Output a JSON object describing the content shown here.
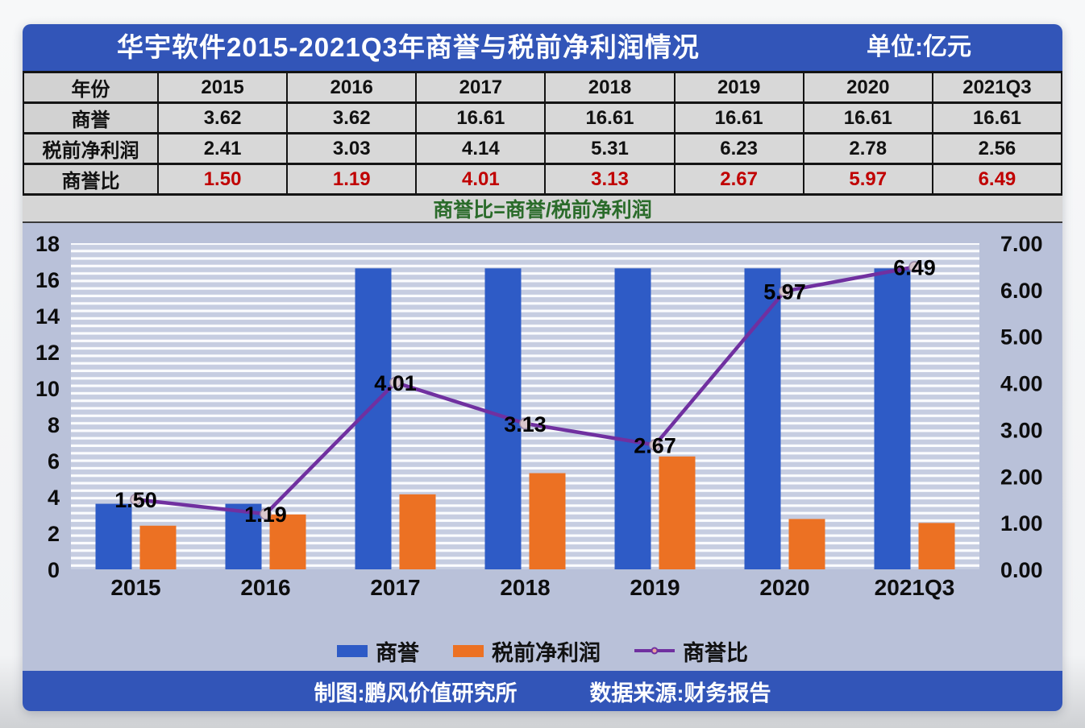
{
  "title_bar": {
    "title": "华宇软件2015-2021Q3年商誉与税前净利润情况",
    "unit": "单位:亿元"
  },
  "table": {
    "header": [
      "年份",
      "2015",
      "2016",
      "2017",
      "2018",
      "2019",
      "2020",
      "2021Q3"
    ],
    "rows": [
      {
        "label": "商誉",
        "values": [
          "3.62",
          "3.62",
          "16.61",
          "16.61",
          "16.61",
          "16.61",
          "16.61"
        ]
      },
      {
        "label": "税前净利润",
        "values": [
          "2.41",
          "3.03",
          "4.14",
          "5.31",
          "6.23",
          "2.78",
          "2.56"
        ]
      },
      {
        "label": "商誉比",
        "values": [
          "1.50",
          "1.19",
          "4.01",
          "3.13",
          "2.67",
          "5.97",
          "6.49"
        ]
      }
    ],
    "formula": "商誉比=商誉/税前净利润"
  },
  "chart_data": {
    "type": "combo",
    "categories": [
      "2015",
      "2016",
      "2017",
      "2018",
      "2019",
      "2020",
      "2021Q3"
    ],
    "series": [
      {
        "name": "商誉",
        "type": "bar",
        "axis": "left",
        "color": "#2e5bc6",
        "values": [
          3.62,
          3.62,
          16.61,
          16.61,
          16.61,
          16.61,
          16.61
        ]
      },
      {
        "name": "税前净利润",
        "type": "bar",
        "axis": "left",
        "color": "#ec7123",
        "values": [
          2.41,
          3.03,
          4.14,
          5.31,
          6.23,
          2.78,
          2.56
        ]
      },
      {
        "name": "商誉比",
        "type": "line",
        "axis": "right",
        "color": "#7030a0",
        "values": [
          1.5,
          1.19,
          4.01,
          3.13,
          2.67,
          5.97,
          6.49
        ],
        "labels": [
          "1.50",
          "1.19",
          "4.01",
          "3.13",
          "2.67",
          "5.97",
          "6.49"
        ]
      }
    ],
    "left_axis": {
      "min": 0,
      "max": 18,
      "step": 2,
      "ticks": [
        "0",
        "2",
        "4",
        "6",
        "8",
        "10",
        "12",
        "14",
        "16",
        "18"
      ]
    },
    "right_axis": {
      "min": 0,
      "max": 7,
      "step": 1,
      "ticks": [
        "0.00",
        "1.00",
        "2.00",
        "3.00",
        "4.00",
        "5.00",
        "6.00",
        "7.00"
      ]
    },
    "legend": [
      {
        "label": "商誉",
        "type": "bar",
        "color": "#2e5bc6"
      },
      {
        "label": "税前净利润",
        "type": "bar",
        "color": "#ec7123"
      },
      {
        "label": "商誉比",
        "type": "line",
        "color": "#7030a0"
      }
    ],
    "grid": "horizontal-stripes",
    "legend_position": "bottom"
  },
  "footer": {
    "credit": "制图:鹏风价值研究所",
    "source": "数据来源:财务报告"
  },
  "colors": {
    "header_bar": "#3255b8",
    "table_bg": "#d8d8d8",
    "ratio_text": "#c00000",
    "formula_text": "#2a6b2a",
    "chart_bg": "#b9c1d9",
    "bar_goodwill": "#2e5bc6",
    "bar_profit": "#ec7123",
    "ratio_line": "#7030a0"
  }
}
